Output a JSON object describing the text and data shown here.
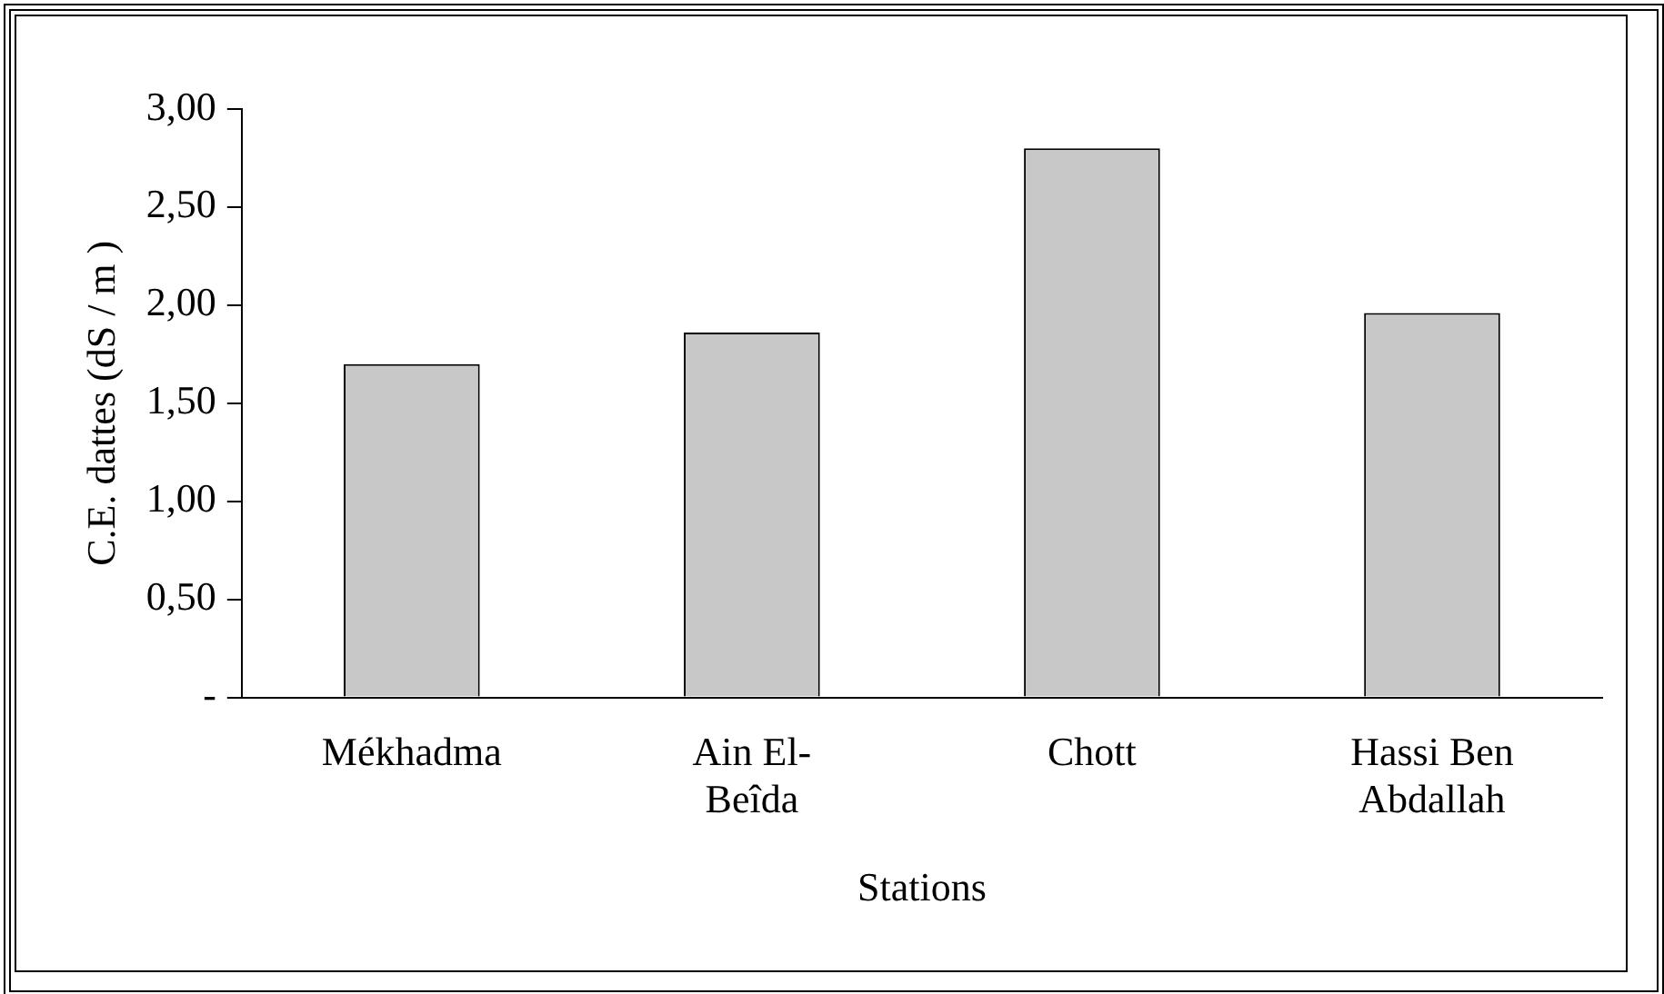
{
  "chart_data": {
    "type": "bar",
    "xlabel": "Stations",
    "ylabel": "C.E. dattes (dS / m )",
    "categories": [
      "Mékhadma",
      "Ain El-\nBeîda",
      "Chott",
      "Hassi Ben\nAbdallah"
    ],
    "values": [
      1.7,
      1.86,
      2.8,
      1.96
    ],
    "color": "#c8c8c8",
    "ylim": [
      0,
      3
    ],
    "yticks": [
      {
        "value": 0,
        "label": "-"
      },
      {
        "value": 0.5,
        "label": "0,50"
      },
      {
        "value": 1,
        "label": "1,00"
      },
      {
        "value": 1.5,
        "label": "1,50"
      },
      {
        "value": 2,
        "label": "2,00"
      },
      {
        "value": 2.5,
        "label": "2,50"
      },
      {
        "value": 3,
        "label": "3,00"
      }
    ],
    "grid": false,
    "legend": false
  }
}
